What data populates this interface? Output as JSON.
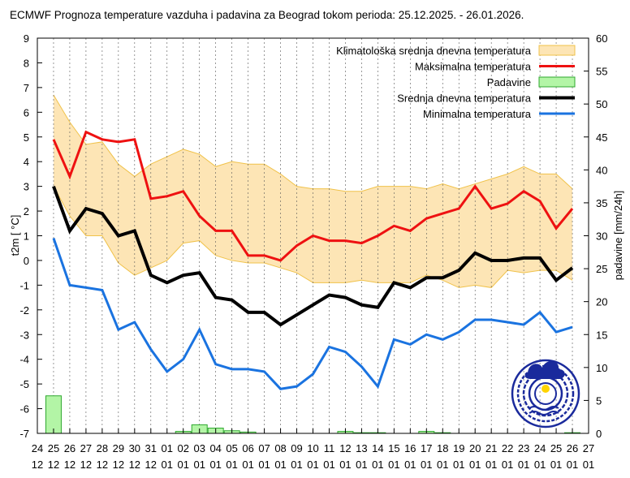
{
  "chart_data": {
    "type": "line",
    "title": "ECMWF Prognoza temperature vazduha i padavina za Beograd tokom perioda: 25.12.2025. - 26.01.2026.",
    "ylabel": "t2m [ °C]",
    "y2label": "padavine [mm/24h]",
    "ylim": [
      -7,
      9
    ],
    "y2lim": [
      0,
      60
    ],
    "yticks": [
      "9",
      "8",
      "7",
      "6",
      "5",
      "4",
      "3",
      "2",
      "1",
      "0",
      "-1",
      "-2",
      "-3",
      "-4",
      "-5",
      "-6",
      "-7"
    ],
    "y2ticks": [
      "60",
      "55",
      "50",
      "45",
      "40",
      "35",
      "30",
      "25",
      "20",
      "15",
      "10",
      "5",
      "0"
    ],
    "x_day": [
      "24",
      "25",
      "26",
      "27",
      "28",
      "29",
      "30",
      "31",
      "01",
      "02",
      "03",
      "04",
      "05",
      "06",
      "07",
      "08",
      "09",
      "10",
      "11",
      "12",
      "13",
      "14",
      "15",
      "16",
      "17",
      "18",
      "19",
      "20",
      "21",
      "22",
      "23",
      "24",
      "25",
      "26",
      "27"
    ],
    "x_month": [
      "12",
      "12",
      "12",
      "12",
      "12",
      "12",
      "12",
      "12",
      "01",
      "01",
      "01",
      "01",
      "01",
      "01",
      "01",
      "01",
      "01",
      "01",
      "01",
      "01",
      "01",
      "01",
      "01",
      "01",
      "01",
      "01",
      "01",
      "01",
      "01",
      "01",
      "01",
      "01",
      "01",
      "01",
      "01"
    ],
    "grid": true,
    "legend_position": "top-right",
    "dates": [
      "2025-12-25",
      "2025-12-26",
      "2025-12-27",
      "2025-12-28",
      "2025-12-29",
      "2025-12-30",
      "2025-12-31",
      "2026-01-01",
      "2026-01-02",
      "2026-01-03",
      "2026-01-04",
      "2026-01-05",
      "2026-01-06",
      "2026-01-07",
      "2026-01-08",
      "2026-01-09",
      "2026-01-10",
      "2026-01-11",
      "2026-01-12",
      "2026-01-13",
      "2026-01-14",
      "2026-01-15",
      "2026-01-16",
      "2026-01-17",
      "2026-01-18",
      "2026-01-19",
      "2026-01-20",
      "2026-01-21",
      "2026-01-22",
      "2026-01-23",
      "2026-01-24",
      "2026-01-25",
      "2026-01-26"
    ],
    "climatology": {
      "name": "Klimatološka srednja dnevna temperatura",
      "color": "#fde5b5",
      "border": "#f0c24a",
      "upper": [
        6.7,
        5.6,
        4.7,
        4.8,
        3.9,
        3.4,
        3.9,
        4.2,
        4.5,
        4.3,
        3.8,
        4.0,
        3.9,
        3.9,
        3.5,
        3.0,
        2.9,
        2.9,
        2.8,
        2.8,
        3.0,
        3.0,
        3.0,
        2.9,
        3.1,
        2.9,
        3.1,
        3.3,
        3.5,
        3.8,
        3.5,
        3.5,
        2.9
      ],
      "lower": [
        3.0,
        1.8,
        1.0,
        1.0,
        -0.1,
        -0.6,
        -0.3,
        0.0,
        0.7,
        0.8,
        0.2,
        0.0,
        -0.1,
        -0.1,
        -0.3,
        -0.5,
        -0.9,
        -0.9,
        -0.9,
        -0.8,
        -0.9,
        -0.9,
        -0.9,
        -0.6,
        -0.8,
        -1.1,
        -1.0,
        -1.1,
        -0.4,
        -0.5,
        -0.4,
        -0.4,
        -0.8
      ]
    },
    "series": [
      {
        "name": "Maksimalna temperatura",
        "color": "#ee1111",
        "width": 3,
        "values": [
          4.9,
          3.4,
          5.2,
          4.9,
          4.8,
          4.9,
          2.5,
          2.6,
          2.8,
          1.8,
          1.2,
          1.2,
          0.2,
          0.2,
          0.0,
          0.6,
          1.0,
          0.8,
          0.8,
          0.7,
          1.0,
          1.4,
          1.2,
          1.7,
          1.9,
          2.1,
          3.0,
          2.1,
          2.3,
          2.8,
          2.4,
          1.3,
          2.1
        ]
      },
      {
        "name": "Srednja dnevna temperatura",
        "color": "#000000",
        "width": 4,
        "values": [
          3.0,
          1.2,
          2.1,
          1.9,
          1.0,
          1.2,
          -0.6,
          -0.9,
          -0.6,
          -0.5,
          -1.5,
          -1.6,
          -2.1,
          -2.1,
          -2.6,
          -2.2,
          -1.8,
          -1.4,
          -1.5,
          -1.8,
          -1.9,
          -0.9,
          -1.1,
          -0.7,
          -0.7,
          -0.4,
          0.3,
          0.0,
          0.0,
          0.1,
          0.1,
          -0.8,
          -0.3
        ]
      },
      {
        "name": "Minimalna temperatura",
        "color": "#1a73e0",
        "width": 3,
        "values": [
          0.9,
          -1.0,
          -1.1,
          -1.2,
          -2.8,
          -2.5,
          -3.6,
          -4.5,
          -4.0,
          -2.8,
          -4.2,
          -4.4,
          -4.4,
          -4.5,
          -5.2,
          -5.1,
          -4.6,
          -3.5,
          -3.7,
          -4.3,
          -5.1,
          -3.2,
          -3.4,
          -3.0,
          -3.2,
          -2.9,
          -2.4,
          -2.4,
          -2.5,
          -2.6,
          -2.1,
          -2.9,
          -2.7
        ]
      }
    ],
    "precipitation": {
      "name": "Padavine",
      "color": "#b3f5a6",
      "border": "#2fa82f",
      "values": [
        5.7,
        0.0,
        0.0,
        0.0,
        0.0,
        0.0,
        0.0,
        0.0,
        0.3,
        1.3,
        0.8,
        0.4,
        0.2,
        0.0,
        0.0,
        0.0,
        0.0,
        0.0,
        0.3,
        0.1,
        0.1,
        0.0,
        0.0,
        0.3,
        0.1,
        0.0,
        0.0,
        0.0,
        0.0,
        0.0,
        0.0,
        0.0,
        0.1
      ]
    }
  },
  "logo": {
    "name": "rhmz-logo",
    "color": "#1a2a9c",
    "sun_color": "#ffd400"
  }
}
